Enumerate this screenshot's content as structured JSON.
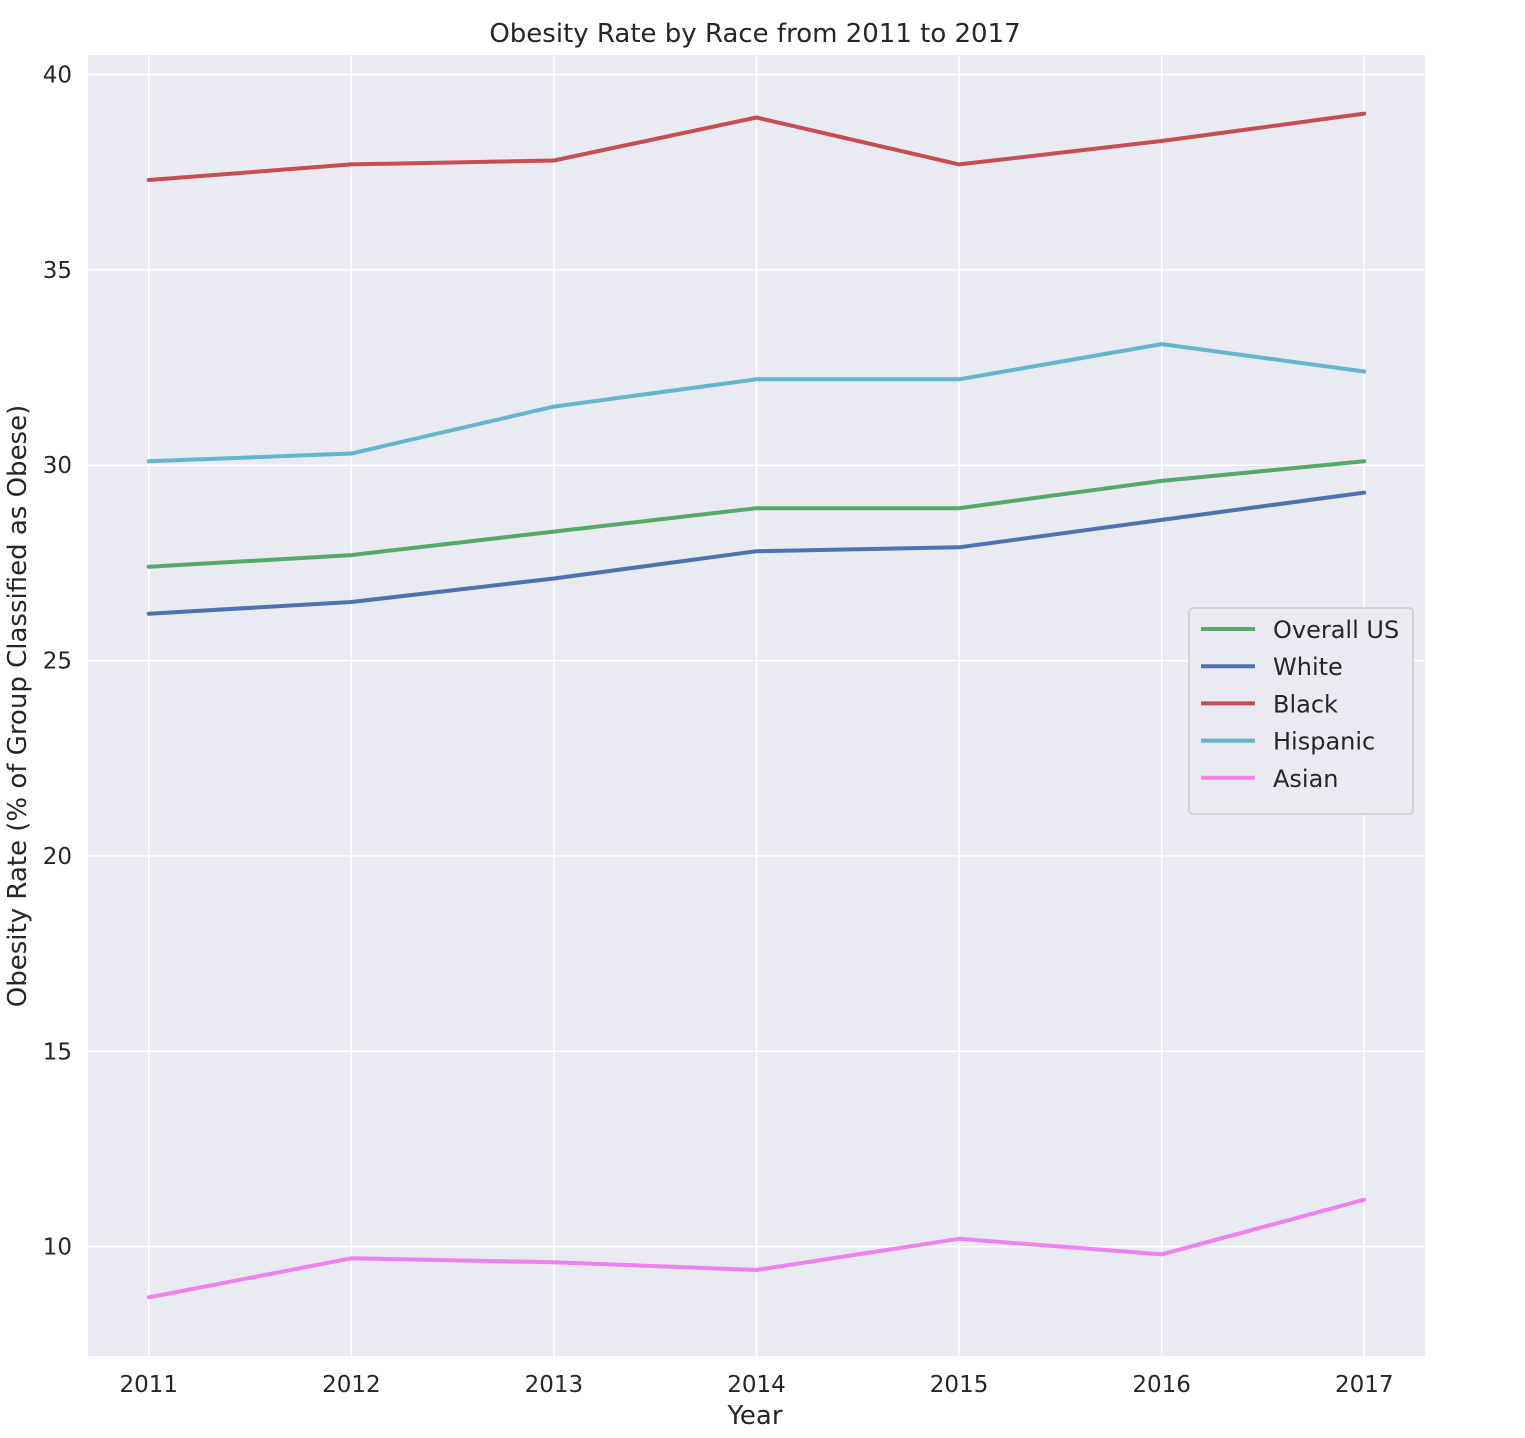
{
  "chart_data": {
    "type": "line",
    "title": "Obesity Rate by Race from 2011 to 2017",
    "xlabel": "Year",
    "ylabel": "Obesity Rate (% of Group Classified as Obese)",
    "x": [
      2011,
      2012,
      2013,
      2014,
      2015,
      2016,
      2017
    ],
    "x_tick_labels": [
      "2011",
      "2012",
      "2013",
      "2014",
      "2015",
      "2016",
      "2017"
    ],
    "xlim": [
      2010.7,
      2017.3
    ],
    "ylim": [
      7.2,
      40.5
    ],
    "y_ticks": [
      10,
      15,
      20,
      25,
      30,
      35,
      40
    ],
    "y_tick_labels": [
      "10",
      "15",
      "20",
      "25",
      "30",
      "35",
      "40"
    ],
    "grid": true,
    "legend_position": "center-right",
    "background_color": "#eaeaf2",
    "grid_color": "#ffffff",
    "series": [
      {
        "name": "Overall US",
        "color": "#55a868",
        "values": [
          27.4,
          27.7,
          28.3,
          28.9,
          28.9,
          29.6,
          30.1
        ]
      },
      {
        "name": "White",
        "color": "#4c72b0",
        "values": [
          26.2,
          26.5,
          27.1,
          27.8,
          27.9,
          28.6,
          29.3
        ]
      },
      {
        "name": "Black",
        "color": "#c44e52",
        "values": [
          37.3,
          37.7,
          37.8,
          38.9,
          37.7,
          38.3,
          39.0
        ]
      },
      {
        "name": "Hispanic",
        "color": "#64b5cd",
        "values": [
          30.1,
          30.3,
          31.5,
          32.2,
          32.2,
          33.1,
          32.4
        ]
      },
      {
        "name": "Asian",
        "color": "#ee82ee",
        "values": [
          8.7,
          9.7,
          9.6,
          9.4,
          10.2,
          9.8,
          11.2
        ]
      }
    ]
  }
}
